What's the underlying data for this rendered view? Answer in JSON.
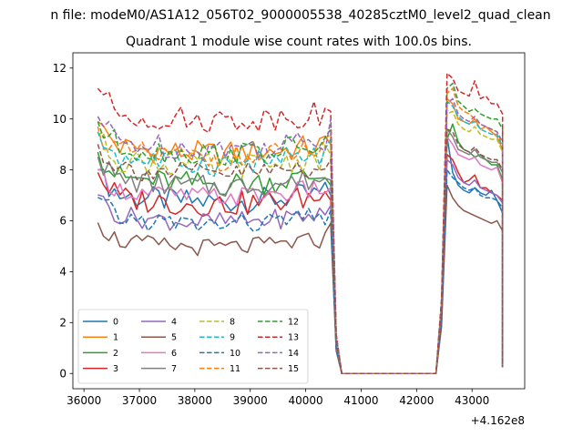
{
  "figure": {
    "suptitle": "n file: modeM0/AS1A12_056T02_9000005538_40285cztM0_level2_quad_clean"
  },
  "chart_data": {
    "type": "line",
    "title": "Quadrant 1 module wise count rates with 100.0s bins.",
    "xlabel": "",
    "ylabel": "",
    "x_offset_label": "+4.162e8",
    "xlim": [
      35800,
      43950
    ],
    "ylim": [
      -0.6,
      12.6
    ],
    "x_ticks": [
      36000,
      37000,
      38000,
      39000,
      40000,
      41000,
      42000,
      43000
    ],
    "x_tick_labels": [
      "36000",
      "37000",
      "38000",
      "39000",
      "40000",
      "41000",
      "42000",
      "43000"
    ],
    "y_ticks": [
      0,
      2,
      4,
      6,
      8,
      10,
      12
    ],
    "y_tick_labels": [
      "0",
      "2",
      "4",
      "6",
      "8",
      "10",
      "12"
    ],
    "grid": false,
    "legend_position": "lower-left",
    "legend_ncols": 4,
    "segments": {
      "seg1": {
        "start": 36250,
        "step": 100,
        "count": 43
      },
      "gap": {
        "start": 40650,
        "end": 42350,
        "value": 0
      },
      "seg2": {
        "start": 42550,
        "step": 100,
        "count": 11
      }
    },
    "series": [
      {
        "name": "0",
        "color": "#1f77b4",
        "dash": "solid",
        "seg1_level": 7.1,
        "seg1_amp": 0.5,
        "seg1_last": 7.0,
        "seg2_first": 9.3,
        "seg2_levels": [
          7.9,
          7.4,
          7.2,
          7.1,
          7.3,
          7.1,
          7.0,
          7.2,
          6.8,
          6.3
        ]
      },
      {
        "name": "1",
        "color": "#ff7f0e",
        "dash": "solid",
        "seg1_level": 9.0,
        "seg1_amp": 0.5,
        "seg1_last": 9.0,
        "seg2_first": 10.8,
        "seg2_levels": [
          10.6,
          10.0,
          9.9,
          9.8,
          10.0,
          9.6,
          9.7,
          9.5,
          9.3,
          8.8
        ]
      },
      {
        "name": "2",
        "color": "#2ca02c",
        "dash": "solid",
        "seg1_level": 7.8,
        "seg1_amp": 0.5,
        "seg1_last": 7.4,
        "seg2_first": 9.2,
        "seg2_levels": [
          9.8,
          9.1,
          8.8,
          8.7,
          8.5,
          8.6,
          8.4,
          8.2,
          8.2,
          7.6
        ]
      },
      {
        "name": "3",
        "color": "#d62728",
        "dash": "solid",
        "seg1_level": 7.0,
        "seg1_amp": 0.5,
        "seg1_last": 6.8,
        "seg2_first": 8.6,
        "seg2_levels": [
          8.4,
          7.9,
          7.5,
          7.6,
          7.8,
          7.3,
          7.3,
          7.1,
          7.0,
          6.8
        ]
      },
      {
        "name": "4",
        "color": "#9467bd",
        "dash": "solid",
        "seg1_level": 6.3,
        "seg1_amp": 0.4,
        "seg1_last": 6.6,
        "seg2_first": 8.4,
        "seg2_levels": [
          8.2,
          7.7,
          7.5,
          7.4,
          7.6,
          7.3,
          7.2,
          7.1,
          7.0,
          6.7
        ]
      },
      {
        "name": "5",
        "color": "#8c564b",
        "dash": "solid",
        "seg1_level": 5.3,
        "seg1_amp": 0.35,
        "seg1_last": 5.9,
        "seg2_first": 7.4,
        "seg2_levels": [
          6.9,
          6.6,
          6.4,
          6.3,
          6.2,
          6.1,
          6.0,
          5.9,
          6.0,
          5.6
        ]
      },
      {
        "name": "6",
        "color": "#e377c2",
        "dash": "solid",
        "seg1_level": 7.3,
        "seg1_amp": 0.4,
        "seg1_last": 7.3,
        "seg2_first": 9.3,
        "seg2_levels": [
          9.0,
          8.6,
          8.5,
          8.4,
          8.5,
          8.2,
          8.1,
          8.0,
          8.1,
          7.5
        ]
      },
      {
        "name": "7",
        "color": "#7f7f7f",
        "dash": "solid",
        "seg1_level": 7.7,
        "seg1_amp": 0.45,
        "seg1_last": 7.6,
        "seg2_first": 9.6,
        "seg2_levels": [
          9.3,
          8.8,
          8.7,
          8.6,
          8.8,
          8.5,
          8.4,
          8.3,
          8.3,
          7.9
        ]
      },
      {
        "name": "8",
        "color": "#bcbd22",
        "dash": "dashed",
        "seg1_level": 8.5,
        "seg1_amp": 0.5,
        "seg1_last": 8.6,
        "seg2_first": 10.2,
        "seg2_levels": [
          10.3,
          9.8,
          9.6,
          9.5,
          9.7,
          9.4,
          9.3,
          9.2,
          9.2,
          8.7
        ]
      },
      {
        "name": "9",
        "color": "#17becf",
        "dash": "dashed",
        "seg1_level": 8.6,
        "seg1_amp": 0.5,
        "seg1_last": 9.2,
        "seg2_first": 10.7,
        "seg2_levels": [
          10.5,
          10.1,
          9.9,
          9.8,
          9.9,
          9.6,
          9.5,
          9.4,
          9.4,
          8.9
        ]
      },
      {
        "name": "10",
        "color": "#1f77b4",
        "dash": "dashed",
        "seg1_level": 6.2,
        "seg1_amp": 0.4,
        "seg1_last": 6.4,
        "seg2_first": 8.0,
        "seg2_levels": [
          7.7,
          7.5,
          7.3,
          7.2,
          7.3,
          7.0,
          6.9,
          6.9,
          6.8,
          6.5
        ]
      },
      {
        "name": "11",
        "color": "#ff7f0e",
        "dash": "dashed",
        "seg1_level": 8.8,
        "seg1_amp": 0.5,
        "seg1_last": 9.4,
        "seg2_first": 11.0,
        "seg2_levels": [
          11.2,
          10.5,
          10.3,
          10.2,
          10.0,
          9.8,
          9.7,
          9.6,
          9.5,
          9.0
        ]
      },
      {
        "name": "12",
        "color": "#2ca02c",
        "dash": "dashed",
        "seg1_level": 9.0,
        "seg1_amp": 0.5,
        "seg1_last": 9.6,
        "seg2_first": 11.2,
        "seg2_levels": [
          11.4,
          10.7,
          10.5,
          10.3,
          10.4,
          10.2,
          10.1,
          10.0,
          10.0,
          9.6
        ]
      },
      {
        "name": "13",
        "color": "#d62728",
        "dash": "dashed",
        "seg1_level": 10.3,
        "seg1_amp": 0.5,
        "seg1_last": 10.3,
        "seg2_first": 11.8,
        "seg2_levels": [
          11.6,
          11.1,
          11.0,
          10.9,
          11.5,
          10.8,
          10.9,
          10.6,
          10.6,
          10.2
        ]
      },
      {
        "name": "14",
        "color": "#9467bd",
        "dash": "dashed",
        "seg1_level": 9.2,
        "seg1_amp": 0.5,
        "seg1_last": 10.0,
        "seg2_first": 10.6,
        "seg2_levels": [
          10.8,
          10.2,
          10.0,
          9.9,
          10.1,
          9.8,
          9.7,
          9.6,
          9.5,
          9.1
        ]
      },
      {
        "name": "15",
        "color": "#8c564b",
        "dash": "dashed",
        "seg1_level": 8.2,
        "seg1_amp": 0.45,
        "seg1_last": 8.4,
        "seg2_first": 9.6,
        "seg2_levels": [
          9.5,
          9.0,
          8.8,
          8.7,
          8.9,
          8.6,
          8.5,
          8.4,
          8.4,
          8.0
        ]
      }
    ]
  }
}
